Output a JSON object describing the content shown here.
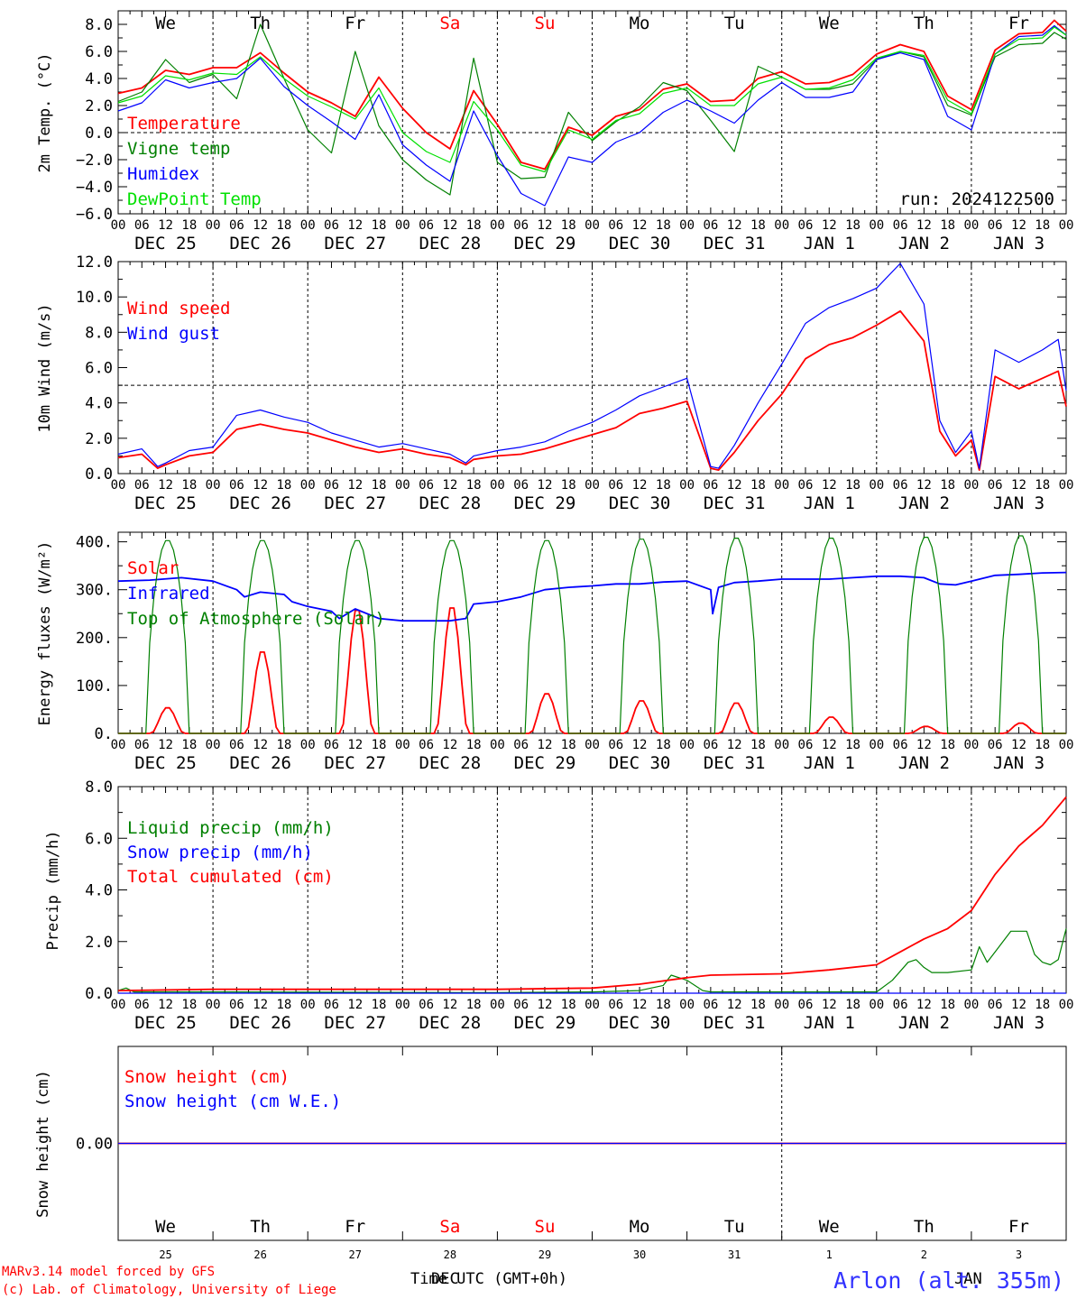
{
  "footer": {
    "credit_line1": "MARv3.14 model forced by GFS",
    "credit_line2": "(c) Lab. of Climatology, University of Liege",
    "axis_title": "Time UTC (GMT+0h)",
    "axis_title_overlap": "DEC",
    "axis_title_overlap2": "JAN",
    "station": "Arlon (alt. 355m)"
  },
  "colors": {
    "red": "#ff0000",
    "green": "#008000",
    "blue": "#0000ff",
    "lightgreen": "#00e000",
    "axis": "#000000",
    "dashed": "#000000"
  },
  "time_axis": {
    "hour_labels": [
      "00",
      "06",
      "12",
      "18"
    ],
    "end_label": "00",
    "date_labels": [
      "DEC 25",
      "DEC 26",
      "DEC 27",
      "DEC 28",
      "DEC 29",
      "DEC 30",
      "DEC 31",
      "JAN  1",
      "JAN  2",
      "JAN  3"
    ],
    "weekday_labels": [
      "We",
      "Th",
      "Fr",
      "Sa",
      "Su",
      "Mo",
      "Tu",
      "We",
      "Th",
      "Fr"
    ],
    "weekday_colors": [
      "#000000",
      "#000000",
      "#000000",
      "#ff0000",
      "#ff0000",
      "#000000",
      "#000000",
      "#000000",
      "#000000",
      "#000000"
    ],
    "day_numbers": [
      "25",
      "26",
      "27",
      "28",
      "29",
      "30",
      "31",
      "1",
      "2",
      "3"
    ]
  },
  "chart_data": [
    {
      "type": "line",
      "ylabel": "2m Temp. (°C)",
      "ylim": [
        -6,
        9
      ],
      "yticks": [
        "8.0",
        "6.0",
        "4.0",
        "2.0",
        "0.0",
        "−2.0",
        "−4.0",
        "−6.0"
      ],
      "ref_line": 0,
      "run_label": "run: 2024122500",
      "x_unit": "hours since DEC 25 00 UTC",
      "series": [
        {
          "name": "Temperature",
          "color": "red",
          "x": [
            0,
            6,
            12,
            18,
            24,
            30,
            36,
            42,
            48,
            54,
            60,
            66,
            72,
            78,
            84,
            90,
            96,
            102,
            108,
            114,
            120,
            126,
            132,
            138,
            144,
            150,
            156,
            162,
            168,
            174,
            180,
            186,
            192,
            198,
            204,
            210,
            216,
            222,
            228,
            234,
            237,
            240
          ],
          "values": [
            2.9,
            3.3,
            4.6,
            4.3,
            4.8,
            4.8,
            5.9,
            4.4,
            3.0,
            2.2,
            1.2,
            4.1,
            1.8,
            0.0,
            -1.2,
            3.1,
            0.6,
            -2.2,
            -2.7,
            0.4,
            -0.2,
            1.2,
            1.7,
            3.2,
            3.6,
            2.3,
            2.4,
            4.0,
            4.5,
            3.6,
            3.7,
            4.3,
            5.8,
            6.5,
            6.0,
            2.7,
            1.7,
            6.1,
            7.3,
            7.4,
            8.3,
            7.5
          ]
        },
        {
          "name": "Vigne temp",
          "color": "green",
          "x": [
            0,
            6,
            12,
            18,
            24,
            30,
            36,
            42,
            48,
            54,
            60,
            66,
            72,
            78,
            84,
            90,
            96,
            102,
            108,
            114,
            120,
            126,
            132,
            138,
            144,
            150,
            156,
            162,
            168,
            174,
            180,
            186,
            192,
            198,
            204,
            210,
            216,
            222,
            228,
            234,
            237,
            240
          ],
          "values": [
            2.3,
            3.0,
            5.4,
            3.7,
            4.3,
            2.5,
            8.0,
            4.0,
            0.2,
            -1.5,
            6.0,
            0.5,
            -2.0,
            -3.5,
            -4.6,
            5.5,
            -2.2,
            -3.4,
            -3.3,
            1.5,
            -0.6,
            0.8,
            1.9,
            3.7,
            3.1,
            0.9,
            -1.4,
            4.9,
            4.1,
            3.2,
            3.2,
            3.6,
            5.4,
            6.0,
            5.6,
            2.0,
            1.3,
            5.6,
            6.5,
            6.6,
            7.4,
            6.9
          ]
        },
        {
          "name": "Humidex",
          "color": "blue",
          "x": [
            0,
            6,
            12,
            18,
            24,
            30,
            36,
            42,
            48,
            54,
            60,
            66,
            72,
            78,
            84,
            90,
            96,
            102,
            108,
            114,
            120,
            126,
            132,
            138,
            144,
            150,
            156,
            162,
            168,
            174,
            180,
            186,
            192,
            198,
            204,
            210,
            216,
            222,
            228,
            234,
            237,
            240
          ],
          "values": [
            1.6,
            2.2,
            3.9,
            3.3,
            3.7,
            4.0,
            5.5,
            3.4,
            2.0,
            0.8,
            -0.5,
            2.8,
            -0.9,
            -2.4,
            -3.6,
            1.6,
            -1.7,
            -4.5,
            -5.4,
            -1.8,
            -2.2,
            -0.7,
            0.0,
            1.5,
            2.4,
            1.6,
            0.7,
            2.4,
            3.7,
            2.6,
            2.6,
            3.0,
            5.4,
            5.9,
            5.4,
            1.2,
            0.2,
            5.8,
            7.1,
            7.2,
            7.9,
            7.2
          ]
        },
        {
          "name": "DewPoint Temp",
          "color": "lightgreen",
          "x": [
            0,
            6,
            12,
            18,
            24,
            30,
            36,
            42,
            48,
            54,
            60,
            66,
            72,
            78,
            84,
            90,
            96,
            102,
            108,
            114,
            120,
            126,
            132,
            138,
            144,
            150,
            156,
            162,
            168,
            174,
            180,
            186,
            192,
            198,
            204,
            210,
            216,
            222,
            228,
            234,
            237,
            240
          ],
          "values": [
            2.2,
            2.7,
            4.2,
            3.9,
            4.4,
            4.3,
            5.6,
            4.0,
            2.7,
            1.9,
            1.0,
            3.3,
            0.0,
            -1.4,
            -2.2,
            2.3,
            0.2,
            -2.4,
            -2.9,
            0.2,
            -0.5,
            0.9,
            1.4,
            2.9,
            3.3,
            2.0,
            2.0,
            3.6,
            4.1,
            3.2,
            3.3,
            3.9,
            5.5,
            6.0,
            5.7,
            2.4,
            1.4,
            5.8,
            6.9,
            7.0,
            7.8,
            7.2
          ]
        }
      ]
    },
    {
      "type": "line",
      "ylabel": "10m Wind (m/s)",
      "ylim": [
        0,
        12
      ],
      "yticks": [
        "12.0",
        "10.0",
        "8.0",
        "6.0",
        "4.0",
        "2.0",
        "0.0"
      ],
      "ref_line": 5,
      "series": [
        {
          "name": "Wind speed",
          "color": "red",
          "x": [
            0,
            6,
            10,
            12,
            18,
            24,
            30,
            36,
            42,
            48,
            54,
            60,
            66,
            72,
            78,
            84,
            88,
            90,
            96,
            102,
            108,
            114,
            120,
            126,
            132,
            138,
            144,
            150,
            152,
            156,
            162,
            168,
            174,
            180,
            186,
            192,
            198,
            204,
            208,
            212,
            216,
            218,
            222,
            228,
            234,
            238,
            240
          ],
          "values": [
            0.9,
            1.1,
            0.3,
            0.5,
            1.0,
            1.2,
            2.5,
            2.8,
            2.5,
            2.3,
            1.9,
            1.5,
            1.2,
            1.4,
            1.1,
            0.9,
            0.5,
            0.8,
            1.0,
            1.1,
            1.4,
            1.8,
            2.2,
            2.6,
            3.4,
            3.7,
            4.1,
            0.3,
            0.2,
            1.2,
            3.0,
            4.5,
            6.5,
            7.3,
            7.7,
            8.4,
            9.2,
            7.5,
            2.4,
            1.0,
            1.9,
            0.2,
            5.5,
            4.8,
            5.4,
            5.8,
            3.8
          ]
        },
        {
          "name": "Wind gust",
          "color": "blue",
          "x": [
            0,
            6,
            10,
            12,
            18,
            24,
            30,
            36,
            42,
            48,
            54,
            60,
            66,
            72,
            78,
            84,
            88,
            90,
            96,
            102,
            108,
            114,
            120,
            126,
            132,
            138,
            144,
            150,
            152,
            156,
            162,
            168,
            174,
            180,
            186,
            192,
            198,
            204,
            208,
            212,
            216,
            218,
            222,
            228,
            234,
            238,
            240
          ],
          "values": [
            1.1,
            1.4,
            0.4,
            0.6,
            1.3,
            1.5,
            3.3,
            3.6,
            3.2,
            2.9,
            2.3,
            1.9,
            1.5,
            1.7,
            1.4,
            1.1,
            0.6,
            1.0,
            1.3,
            1.5,
            1.8,
            2.4,
            2.9,
            3.6,
            4.4,
            4.9,
            5.4,
            0.4,
            0.3,
            1.6,
            4.0,
            6.2,
            8.5,
            9.4,
            9.9,
            10.5,
            11.9,
            9.6,
            3.0,
            1.2,
            2.4,
            0.3,
            7.0,
            6.3,
            7.0,
            7.6,
            4.7
          ]
        }
      ]
    },
    {
      "type": "line",
      "ylabel": "Energy fluxes (W/m²)",
      "ylim": [
        0,
        420
      ],
      "yticks": [
        "400.",
        "300.",
        "200.",
        "100.",
        "0."
      ],
      "series": [
        {
          "name": "Solar",
          "color": "red",
          "peaks": [
            {
              "h": 12,
              "v": 55
            },
            {
              "h": 36,
              "v": 175
            },
            {
              "h": 60,
              "v": 265
            },
            {
              "h": 84,
              "v": 270
            },
            {
              "h": 108,
              "v": 85
            },
            {
              "h": 132,
              "v": 70
            },
            {
              "h": 156,
              "v": 65
            },
            {
              "h": 180,
              "v": 35
            },
            {
              "h": 204,
              "v": 15
            },
            {
              "h": 228,
              "v": 22
            }
          ]
        },
        {
          "name": "Infrared",
          "color": "blue",
          "x": [
            0,
            8,
            16,
            24,
            30,
            32,
            36,
            42,
            44,
            48,
            54,
            56,
            60,
            66,
            72,
            78,
            84,
            88,
            90,
            96,
            102,
            108,
            114,
            120,
            126,
            132,
            138,
            144,
            150,
            150.5,
            152,
            156,
            162,
            168,
            174,
            180,
            186,
            192,
            198,
            204,
            208,
            212,
            216,
            222,
            228,
            234,
            240
          ],
          "values": [
            318,
            320,
            325,
            318,
            300,
            285,
            295,
            290,
            275,
            265,
            255,
            240,
            260,
            240,
            235,
            235,
            235,
            240,
            270,
            275,
            285,
            300,
            305,
            308,
            312,
            312,
            316,
            318,
            300,
            250,
            305,
            315,
            318,
            322,
            322,
            322,
            325,
            328,
            328,
            325,
            312,
            310,
            318,
            330,
            332,
            335,
            336
          ]
        },
        {
          "name": "Top of Atmosphere (Solar)",
          "color": "green",
          "peaks": [
            {
              "h": 12,
              "v": 405
            },
            {
              "h": 36,
              "v": 405
            },
            {
              "h": 60,
              "v": 405
            },
            {
              "h": 84,
              "v": 405
            },
            {
              "h": 108,
              "v": 405
            },
            {
              "h": 132,
              "v": 408
            },
            {
              "h": 156,
              "v": 410
            },
            {
              "h": 180,
              "v": 410
            },
            {
              "h": 204,
              "v": 412
            },
            {
              "h": 228,
              "v": 415
            }
          ]
        }
      ]
    },
    {
      "type": "line",
      "ylabel": "Precip (mm/h)",
      "ylim": [
        0,
        8
      ],
      "yticks": [
        "8.0",
        "6.0",
        "4.0",
        "2.0",
        "0.0"
      ],
      "series": [
        {
          "name": "Liquid precip (mm/h)",
          "color": "green",
          "x": [
            0,
            2,
            4,
            24,
            96,
            120,
            132,
            138,
            140,
            144,
            148,
            150,
            160,
            192,
            196,
            200,
            202,
            204,
            206,
            210,
            216,
            218,
            220,
            222,
            226,
            230,
            232,
            234,
            236,
            238,
            240
          ],
          "values": [
            0.1,
            0.2,
            0.05,
            0.05,
            0.02,
            0.05,
            0.1,
            0.3,
            0.7,
            0.5,
            0.1,
            0.05,
            0.05,
            0.05,
            0.5,
            1.2,
            1.3,
            1.0,
            0.8,
            0.8,
            0.9,
            1.8,
            1.2,
            1.6,
            2.4,
            2.4,
            1.5,
            1.2,
            1.1,
            1.3,
            2.5
          ]
        },
        {
          "name": "Snow precip (mm/h)",
          "color": "blue",
          "x": [
            0,
            240
          ],
          "values": [
            0.0,
            0.0
          ]
        },
        {
          "name": "Total cumulated (cm)",
          "color": "red",
          "x": [
            0,
            24,
            48,
            72,
            96,
            120,
            132,
            144,
            150,
            168,
            180,
            192,
            198,
            204,
            210,
            216,
            222,
            228,
            234,
            240
          ],
          "values": [
            0.1,
            0.15,
            0.15,
            0.15,
            0.15,
            0.2,
            0.35,
            0.6,
            0.7,
            0.75,
            0.9,
            1.1,
            1.6,
            2.1,
            2.5,
            3.2,
            4.6,
            5.7,
            6.5,
            7.6
          ]
        }
      ]
    },
    {
      "type": "line",
      "ylabel": "Snow height (cm)",
      "ytick": "0.00",
      "series": [
        {
          "name": "Snow height (cm)",
          "color": "red",
          "x": [
            0,
            240
          ],
          "values": [
            0,
            0
          ]
        },
        {
          "name": "Snow height (cm W.E.)",
          "color": "blue",
          "x": [
            0,
            240
          ],
          "values": [
            0,
            0
          ]
        }
      ]
    }
  ]
}
